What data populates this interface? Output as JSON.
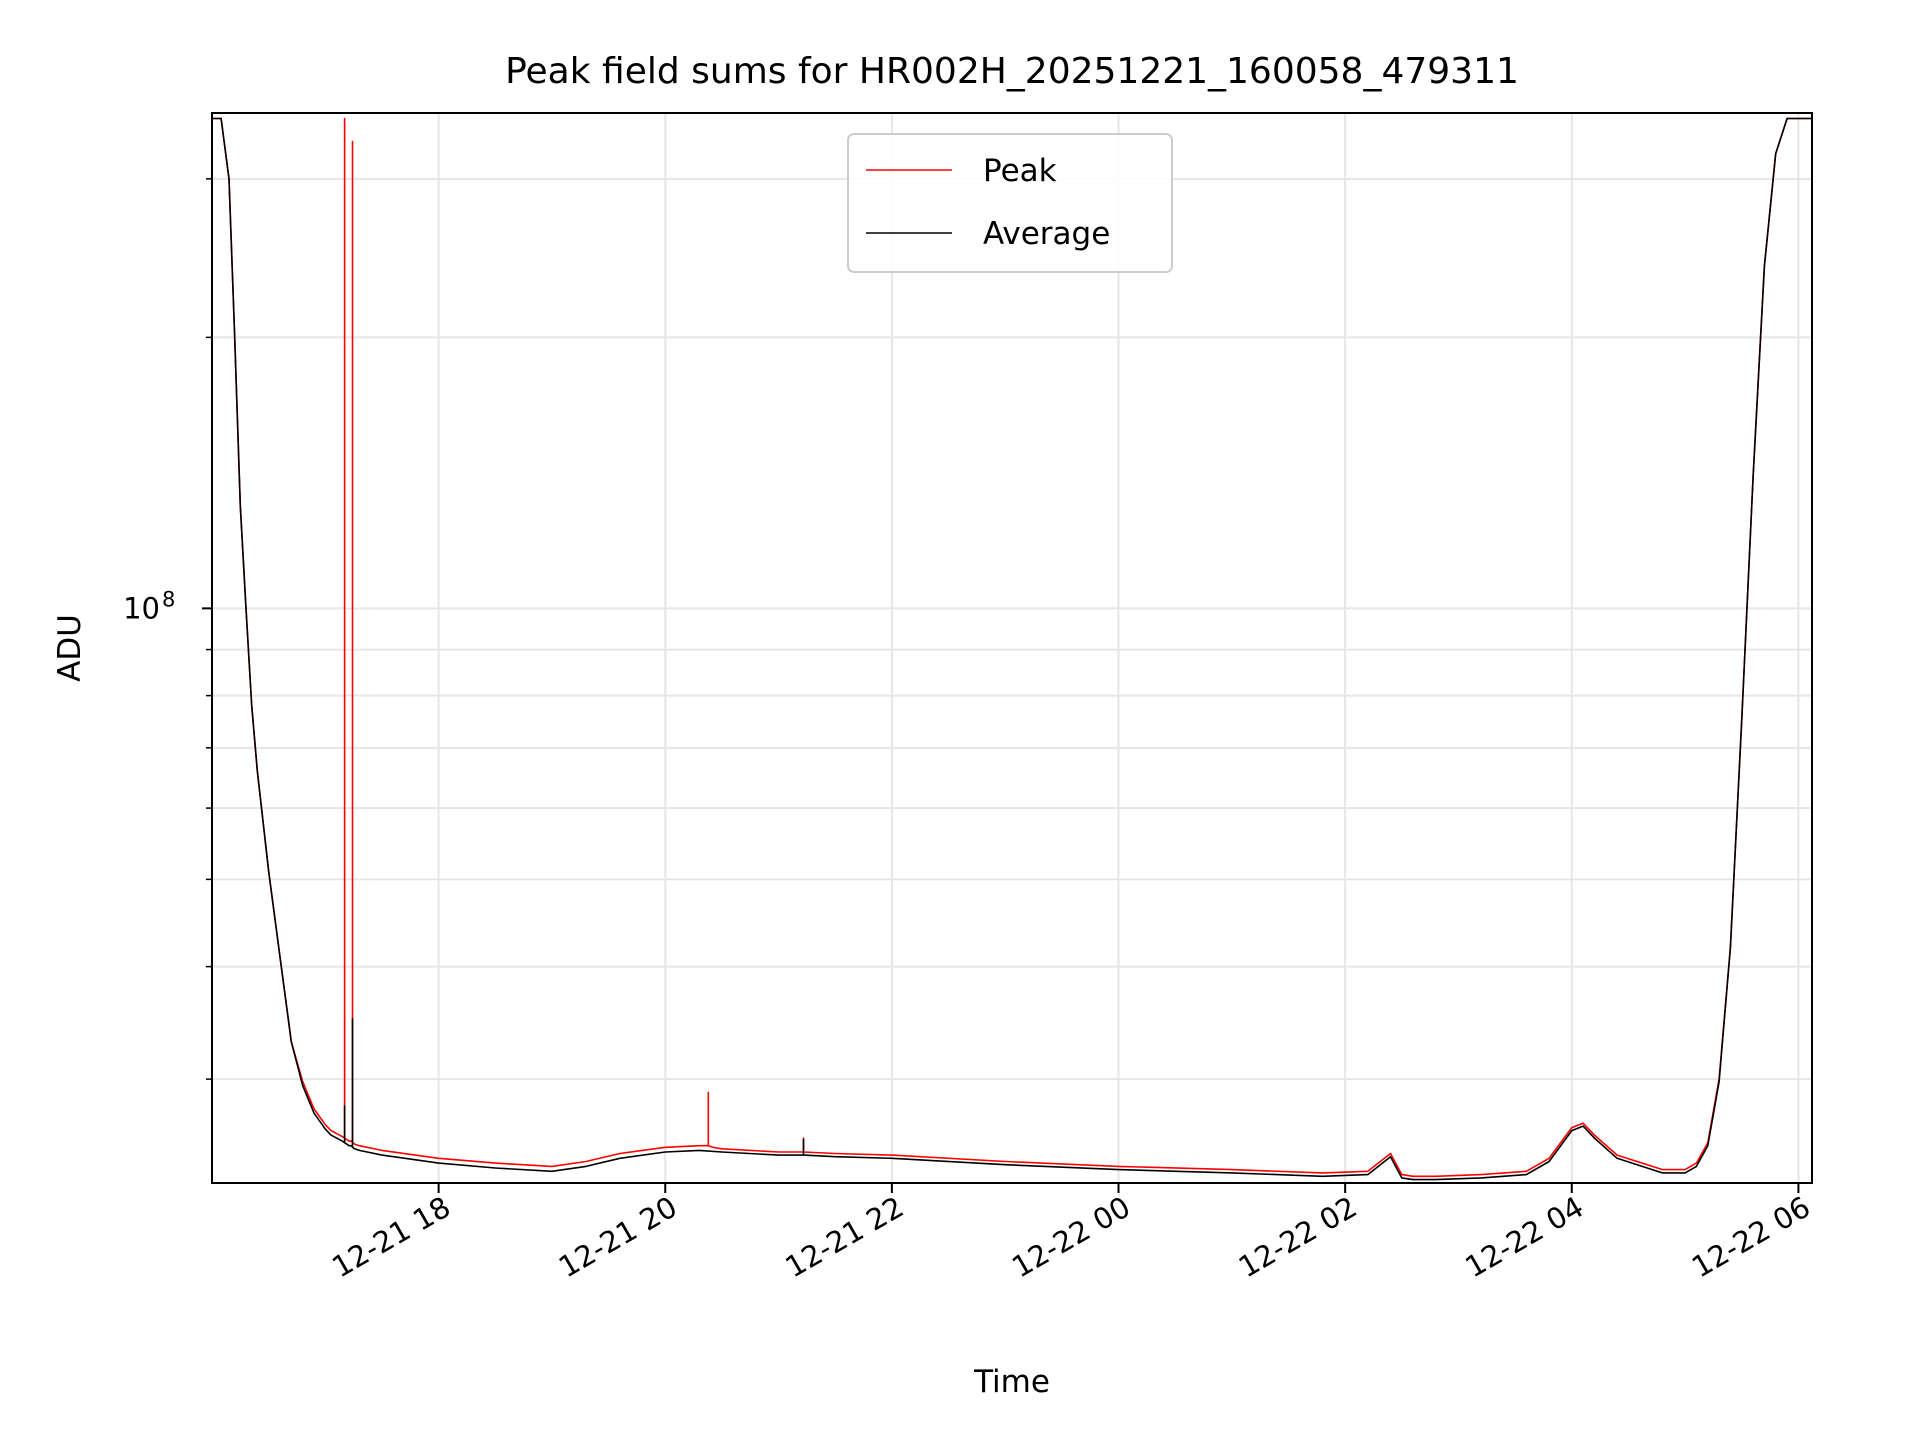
{
  "chart_data": {
    "type": "line",
    "title": "Peak field sums for HR002H_20251221_160058_479311",
    "xlabel": "Time",
    "ylabel": "ADU",
    "yscale": "log",
    "grid": true,
    "legend_position": "upper-center",
    "x_unit": "hours since 2025-12-21 00:00",
    "xlim": [
      16.0,
      30.12
    ],
    "ylim": [
      23000000,
      355000000
    ],
    "x_ticks": [
      {
        "value": 18,
        "label": "12-21 18"
      },
      {
        "value": 20,
        "label": "12-21 20"
      },
      {
        "value": 22,
        "label": "12-21 22"
      },
      {
        "value": 24,
        "label": "12-22 00"
      },
      {
        "value": 26,
        "label": "12-22 02"
      },
      {
        "value": 28,
        "label": "12-22 04"
      },
      {
        "value": 30,
        "label": "12-22 06"
      }
    ],
    "y_major_ticks": [
      {
        "value": 100000000,
        "base": "10",
        "exp": "8"
      }
    ],
    "y_minor_ticks": [
      30000000,
      40000000,
      50000000,
      60000000,
      70000000,
      80000000,
      90000000,
      200000000,
      300000000
    ],
    "series": [
      {
        "name": "Peak",
        "color": "#ff0000",
        "x": [
          16.0,
          16.08,
          16.15,
          16.2,
          16.25,
          16.3,
          16.35,
          16.4,
          16.5,
          16.6,
          16.7,
          16.8,
          16.9,
          17.0,
          17.05,
          17.1,
          17.15,
          17.17,
          17.17,
          17.17,
          17.19,
          17.21,
          17.23,
          17.24,
          17.24,
          17.24,
          17.26,
          17.3,
          17.5,
          18.0,
          18.5,
          19.0,
          19.3,
          19.6,
          20.0,
          20.3,
          20.38,
          20.38,
          20.38,
          20.42,
          20.5,
          21.0,
          21.22,
          21.22,
          21.22,
          21.5,
          22.0,
          23.0,
          24.0,
          25.0,
          25.8,
          26.2,
          26.4,
          26.5,
          26.6,
          26.8,
          27.2,
          27.6,
          27.8,
          28.0,
          28.1,
          28.2,
          28.4,
          28.8,
          29.0,
          29.1,
          29.2,
          29.3,
          29.4,
          29.5,
          29.6,
          29.7,
          29.8,
          29.9,
          30.0,
          30.12
        ],
        "y": [
          350000000,
          350000000,
          300000000,
          200000000,
          130000000,
          100000000,
          78000000,
          66000000,
          51000000,
          41000000,
          33000000,
          29800000,
          27800000,
          26700000,
          26300000,
          26100000,
          25900000,
          25800000,
          350000000,
          25800000,
          25700000,
          25600000,
          25600000,
          25500000,
          330000000,
          25500000,
          25400000,
          25300000,
          25000000,
          24500000,
          24200000,
          24000000,
          24300000,
          24800000,
          25200000,
          25300000,
          25300000,
          29000000,
          25300000,
          25200000,
          25100000,
          24900000,
          24900000,
          25800000,
          24900000,
          24800000,
          24700000,
          24300000,
          24000000,
          23800000,
          23600000,
          23700000,
          24800000,
          23500000,
          23400000,
          23400000,
          23500000,
          23700000,
          24500000,
          26500000,
          26800000,
          26000000,
          24700000,
          23800000,
          23800000,
          24200000,
          25500000,
          30000000,
          42000000,
          75000000,
          140000000,
          240000000,
          320000000,
          350000000,
          350000000,
          350000000
        ]
      },
      {
        "name": "Average",
        "color": "#000000",
        "x": [
          16.0,
          16.08,
          16.15,
          16.2,
          16.25,
          16.3,
          16.35,
          16.4,
          16.5,
          16.6,
          16.7,
          16.8,
          16.9,
          17.0,
          17.05,
          17.1,
          17.15,
          17.17,
          17.17,
          17.17,
          17.19,
          17.21,
          17.23,
          17.24,
          17.24,
          17.24,
          17.26,
          17.3,
          17.5,
          18.0,
          18.5,
          19.0,
          19.3,
          19.6,
          20.0,
          20.3,
          20.5,
          21.0,
          21.22,
          21.22,
          21.22,
          21.5,
          22.0,
          23.0,
          24.0,
          25.0,
          25.8,
          26.2,
          26.4,
          26.5,
          26.6,
          26.8,
          27.2,
          27.6,
          27.8,
          28.0,
          28.1,
          28.2,
          28.4,
          28.8,
          29.0,
          29.1,
          29.2,
          29.3,
          29.4,
          29.5,
          29.6,
          29.7,
          29.8,
          29.9,
          30.0,
          30.12
        ],
        "y": [
          350000000,
          350000000,
          300000000,
          200000000,
          130000000,
          100000000,
          78000000,
          66000000,
          51000000,
          41000000,
          33000000,
          29500000,
          27500000,
          26400000,
          26000000,
          25800000,
          25600000,
          25500000,
          28000000,
          25500000,
          25400000,
          25300000,
          25300000,
          25200000,
          35000000,
          25200000,
          25100000,
          25000000,
          24700000,
          24200000,
          23900000,
          23700000,
          24000000,
          24500000,
          24900000,
          25000000,
          24900000,
          24700000,
          24700000,
          25700000,
          24700000,
          24600000,
          24500000,
          24100000,
          23800000,
          23600000,
          23400000,
          23500000,
          24600000,
          23300000,
          23200000,
          23200000,
          23300000,
          23500000,
          24300000,
          26300000,
          26600000,
          25800000,
          24500000,
          23600000,
          23600000,
          24000000,
          25300000,
          29800000,
          42000000,
          75000000,
          140000000,
          240000000,
          320000000,
          350000000,
          350000000,
          350000000
        ]
      }
    ]
  }
}
